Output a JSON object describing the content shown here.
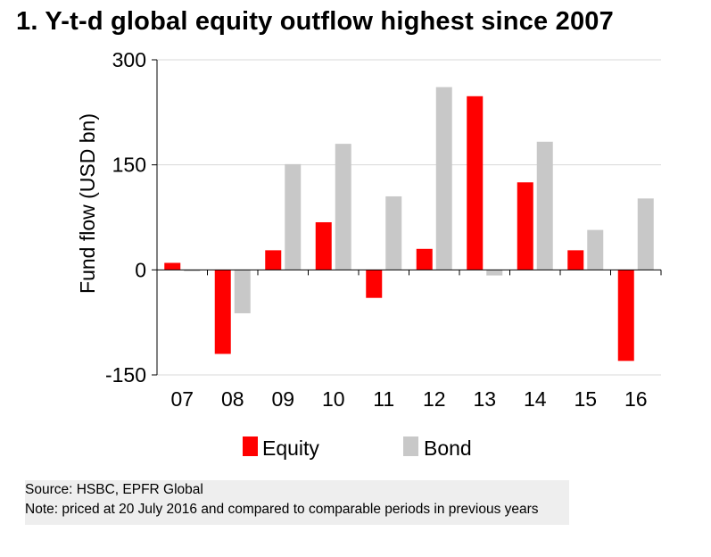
{
  "title": "1. Y-t-d global equity outflow highest since 2007",
  "chart_data": {
    "type": "bar",
    "title": "1. Y-t-d global equity outflow highest since 2007",
    "xlabel": "",
    "ylabel": "Fund flow (USD bn)",
    "categories": [
      "07",
      "08",
      "09",
      "10",
      "11",
      "12",
      "13",
      "14",
      "15",
      "16"
    ],
    "series": [
      {
        "name": "Equity",
        "color": "#ff0000",
        "values": [
          10,
          -120,
          28,
          68,
          -40,
          30,
          248,
          125,
          28,
          -130
        ]
      },
      {
        "name": "Bond",
        "color": "#c8c8c8",
        "values": [
          -2,
          -62,
          151,
          180,
          105,
          261,
          -8,
          183,
          57,
          102
        ]
      }
    ],
    "ylim": [
      -150,
      300
    ],
    "yticks": [
      "300",
      "150",
      "0",
      "-150"
    ],
    "ytick_values": [
      300,
      150,
      0,
      -150
    ],
    "grid": true,
    "legend": "bottom"
  },
  "source": "Source: HSBC, EPFR Global",
  "note": "Note: priced at 20 July 2016 and compared to comparable periods in previous years"
}
